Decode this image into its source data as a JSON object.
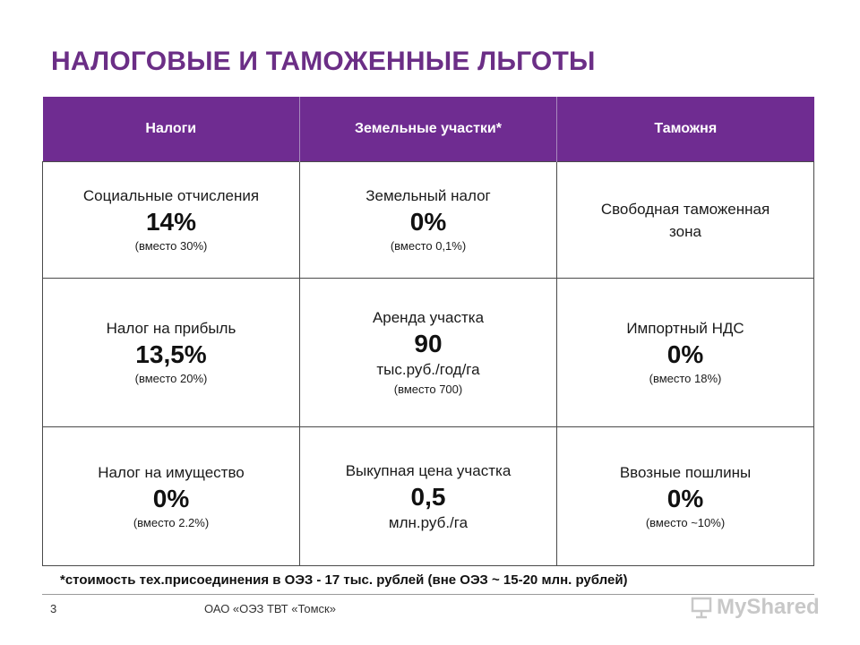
{
  "title": "НАЛОГОВЫЕ И ТАМОЖЕННЫЕ ЛЬГОТЫ",
  "table": {
    "headers": [
      "Налоги",
      "Земельные участки*",
      "Таможня"
    ],
    "rows": [
      [
        {
          "label": "Социальные отчисления",
          "value": "14%",
          "note": "(вместо 30%)"
        },
        {
          "label": "Земельный налог",
          "value": "0%",
          "note": "(вместо 0,1%)"
        },
        {
          "label": "Свободная таможенная зона"
        }
      ],
      [
        {
          "label": "Налог на прибыль",
          "value": "13,5%",
          "note": "(вместо 20%)"
        },
        {
          "label": "Аренда участка",
          "value": "90",
          "unit": "тыс.руб./год/га",
          "note": "(вместо 700)"
        },
        {
          "label": "Импортный НДС",
          "value": "0%",
          "note": "(вместо 18%)"
        }
      ],
      [
        {
          "label": "Налог на имущество",
          "value": "0%",
          "note": "(вместо 2.2%)"
        },
        {
          "label": "Выкупная цена участка",
          "value": "0,5",
          "unit": "млн.руб./га"
        },
        {
          "label": "Ввозные пошлины",
          "value": "0%",
          "note": "(вместо ~10%)"
        }
      ]
    ]
  },
  "footnote": "*стоимость тех.присоединения в ОЭЗ - 17 тыс. рублей (вне ОЭЗ ~ 15-20 млн. рублей)",
  "footer": {
    "page_number": "3",
    "company": "ОАО «ОЭЗ ТВТ «Томск»",
    "watermark": "MyShared"
  },
  "colors": {
    "accent": "#6f2c91",
    "title": "#6b2e86"
  }
}
